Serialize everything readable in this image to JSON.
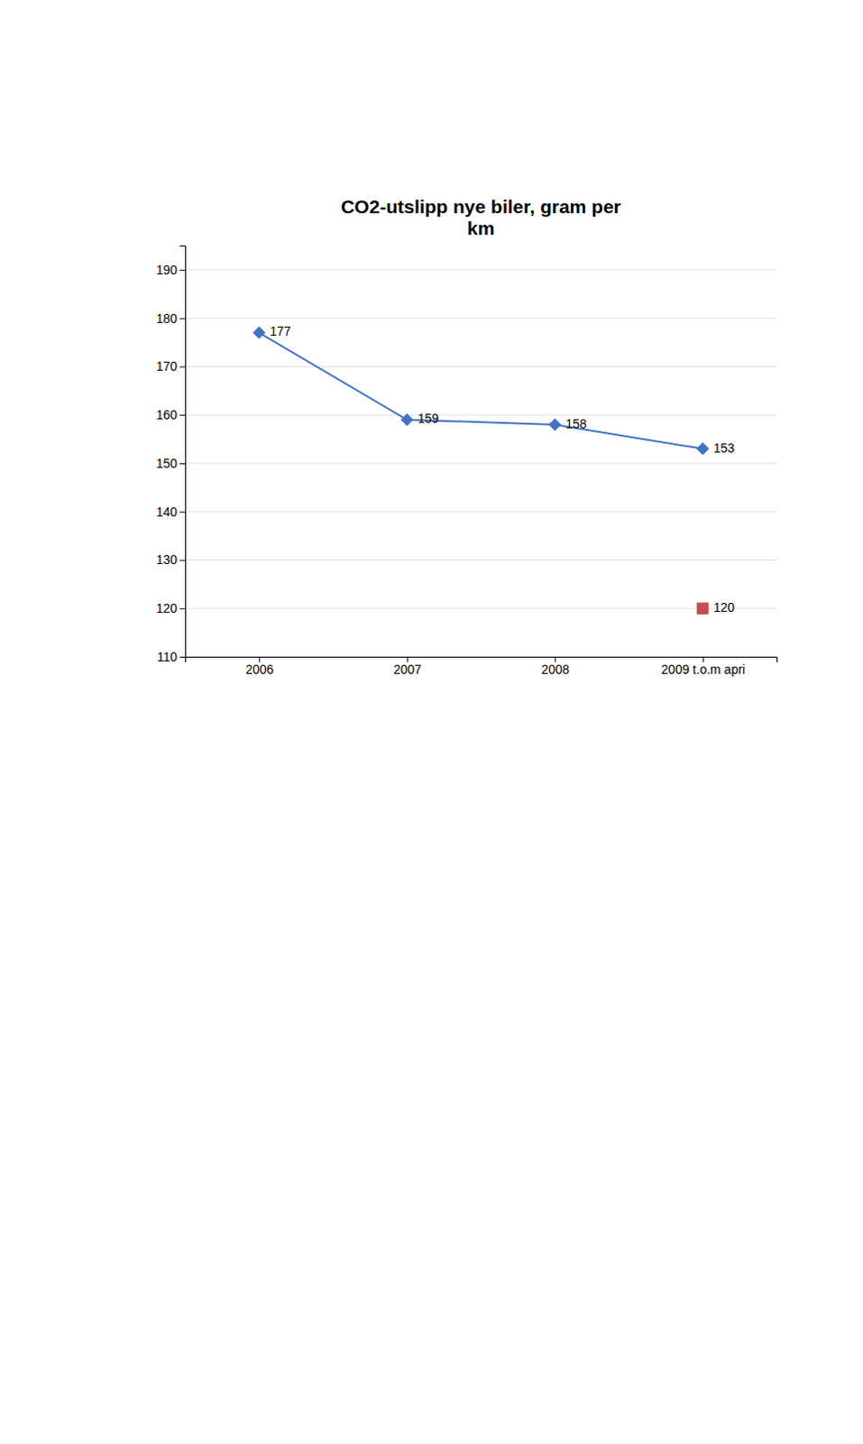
{
  "chart_data": {
    "type": "line",
    "title": "CO2-utslipp nye biler, gram per\nkm",
    "categories": [
      "2006",
      "2007",
      "2008",
      "2009 t.o.m apri"
    ],
    "series": [
      {
        "type": "line",
        "values": [
          177,
          159,
          158,
          153
        ],
        "color": "#4472C4",
        "marker": "diamond"
      },
      {
        "type": "scatter",
        "values": [
          null,
          null,
          null,
          120
        ],
        "color": "#C0504D",
        "marker": "square"
      }
    ],
    "ylim": [
      110,
      195
    ],
    "yticks": [
      110,
      120,
      130,
      140,
      150,
      160,
      170,
      180,
      190
    ],
    "grid": true,
    "data_labels": true
  }
}
